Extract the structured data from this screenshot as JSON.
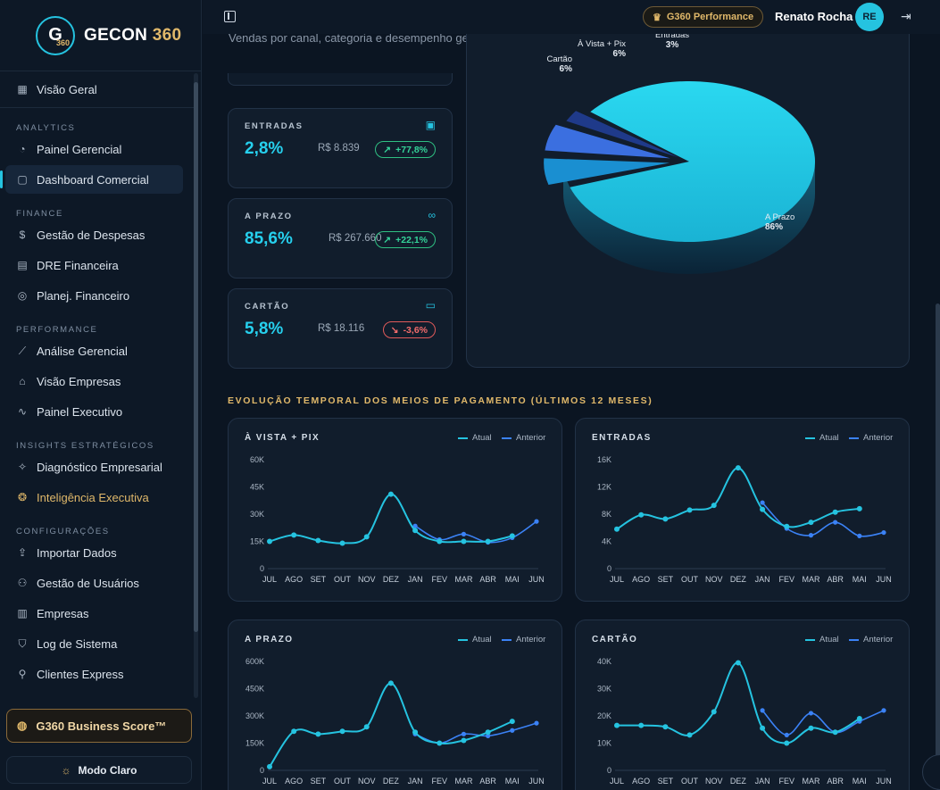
{
  "brand": {
    "badge_letter": "G",
    "badge_number": "360",
    "name": "GECON",
    "name_number": "360"
  },
  "sidebar": {
    "top_item": {
      "label": "Visão Geral",
      "icon": "grid-icon"
    },
    "sections": [
      {
        "title": "ANALYTICS",
        "items": [
          {
            "label": "Painel Gerencial",
            "icon": "gauge-icon"
          },
          {
            "label": "Dashboard Comercial",
            "icon": "shopping-bag-icon",
            "active": true
          }
        ]
      },
      {
        "title": "FINANCE",
        "items": [
          {
            "label": "Gestão de Despesas",
            "icon": "dollar-icon"
          },
          {
            "label": "DRE Financeira",
            "icon": "document-icon"
          },
          {
            "label": "Planej. Financeiro",
            "icon": "target-icon"
          }
        ]
      },
      {
        "title": "PERFORMANCE",
        "items": [
          {
            "label": "Análise Gerencial",
            "icon": "line-chart-icon"
          },
          {
            "label": "Visão Empresas",
            "icon": "store-icon"
          },
          {
            "label": "Painel Executivo",
            "icon": "activity-icon"
          }
        ]
      },
      {
        "title": "INSIGHTS ESTRATÉGICOS",
        "items": [
          {
            "label": "Diagnóstico Empresarial",
            "icon": "sparkles-icon"
          },
          {
            "label": "Inteligência Executiva",
            "icon": "brain-icon",
            "gold": true
          }
        ]
      },
      {
        "title": "CONFIGURAÇÕES",
        "items": [
          {
            "label": "Importar Dados",
            "icon": "upload-icon"
          },
          {
            "label": "Gestão de Usuários",
            "icon": "users-icon"
          },
          {
            "label": "Empresas",
            "icon": "building-icon"
          },
          {
            "label": "Log de Sistema",
            "icon": "shield-icon"
          },
          {
            "label": "Clientes Express",
            "icon": "user-plus-icon"
          }
        ]
      }
    ],
    "score_button": "G360 Business Score™",
    "mode_button": "Modo Claro"
  },
  "topbar": {
    "performance_badge": "G360 Performance",
    "user_name": "Renato Rocha",
    "avatar_initials": "RE"
  },
  "main": {
    "subtitle": "Vendas por canal, categoria e desempenho geral.",
    "kpis": [
      {
        "label": "ENTRADAS",
        "icon": "wallet-icon",
        "percent": "2,8%",
        "value": "R$ 8.839",
        "change": "+77,8%",
        "trend": "up"
      },
      {
        "label": "A PRAZO",
        "icon": "link-icon",
        "percent": "85,6%",
        "value": "R$ 267.660",
        "change": "+22,1%",
        "trend": "up"
      },
      {
        "label": "CARTÃO",
        "icon": "credit-card-icon",
        "percent": "5,8%",
        "value": "R$ 18.116",
        "change": "-3,6%",
        "trend": "down"
      }
    ],
    "section_title": "EVOLUÇÃO TEMPORAL DOS MEIOS DE PAGAMENTO (ÚLTIMOS 12 MESES)",
    "legend_current": "Atual",
    "legend_previous": "Anterior"
  },
  "colors": {
    "accent": "#25c3e0",
    "previous": "#3b82f6",
    "gold": "#e0b86a",
    "up": "#34d399",
    "down": "#f26b6b"
  },
  "chart_data": [
    {
      "type": "pie",
      "categories": [
        "A Prazo",
        "Cartão",
        "À Vista + Pix",
        "Entradas"
      ],
      "values": [
        86,
        6,
        6,
        3
      ],
      "labels": [
        "86%",
        "6%",
        "6%",
        "3%"
      ],
      "colors": [
        "#25c3e0",
        "#1a8fd1",
        "#3b6fe0",
        "#1f3a8a"
      ]
    },
    {
      "type": "line",
      "title": "À VISTA + PIX",
      "x": [
        "JUL",
        "AGO",
        "SET",
        "OUT",
        "NOV",
        "DEZ",
        "JAN",
        "FEV",
        "MAR",
        "ABR",
        "MAI",
        "JUN"
      ],
      "yticks": [
        "0",
        "15K",
        "30K",
        "45K",
        "60K"
      ],
      "ylim": [
        0,
        60000
      ],
      "series": [
        {
          "name": "Atual",
          "values": [
            15000,
            18500,
            15500,
            14000,
            17500,
            41000,
            21000,
            15000,
            15000,
            15000,
            18000,
            null
          ]
        },
        {
          "name": "Anterior",
          "values": [
            null,
            null,
            null,
            null,
            null,
            null,
            23500,
            16000,
            19000,
            14500,
            17000,
            26000
          ]
        }
      ]
    },
    {
      "type": "line",
      "title": "ENTRADAS",
      "x": [
        "JUL",
        "AGO",
        "SET",
        "OUT",
        "NOV",
        "DEZ",
        "JAN",
        "FEV",
        "MAR",
        "ABR",
        "MAI",
        "JUN"
      ],
      "yticks": [
        "0",
        "4K",
        "8K",
        "12K",
        "16K"
      ],
      "ylim": [
        0,
        16000
      ],
      "series": [
        {
          "name": "Atual",
          "values": [
            5800,
            7900,
            7300,
            8600,
            9300,
            14800,
            8700,
            6200,
            6800,
            8300,
            8800,
            null
          ]
        },
        {
          "name": "Anterior",
          "values": [
            null,
            null,
            null,
            null,
            null,
            null,
            9700,
            5900,
            4900,
            6800,
            4800,
            5300
          ]
        }
      ]
    },
    {
      "type": "line",
      "title": "A PRAZO",
      "x": [
        "JUL",
        "AGO",
        "SET",
        "OUT",
        "NOV",
        "DEZ",
        "JAN",
        "FEV",
        "MAR",
        "ABR",
        "MAI",
        "JUN"
      ],
      "yticks": [
        "0",
        "150K",
        "300K",
        "450K",
        "600K"
      ],
      "ylim": [
        0,
        600000
      ],
      "series": [
        {
          "name": "Atual",
          "values": [
            20000,
            215000,
            200000,
            215000,
            240000,
            480000,
            210000,
            150000,
            165000,
            210000,
            270000,
            null
          ]
        },
        {
          "name": "Anterior",
          "values": [
            null,
            null,
            null,
            null,
            null,
            null,
            200000,
            150000,
            200000,
            190000,
            220000,
            260000
          ]
        }
      ]
    },
    {
      "type": "line",
      "title": "CARTÃO",
      "x": [
        "JUL",
        "AGO",
        "SET",
        "OUT",
        "NOV",
        "DEZ",
        "JAN",
        "FEV",
        "MAR",
        "ABR",
        "MAI",
        "JUN"
      ],
      "yticks": [
        "0",
        "10K",
        "20K",
        "30K",
        "40K"
      ],
      "ylim": [
        0,
        40000
      ],
      "series": [
        {
          "name": "Atual",
          "values": [
            16500,
            16500,
            16000,
            13000,
            21500,
            39500,
            15500,
            10000,
            15500,
            14000,
            19000,
            null
          ]
        },
        {
          "name": "Anterior",
          "values": [
            null,
            null,
            null,
            null,
            null,
            null,
            22000,
            13000,
            21000,
            14000,
            18000,
            22000
          ]
        }
      ]
    }
  ]
}
